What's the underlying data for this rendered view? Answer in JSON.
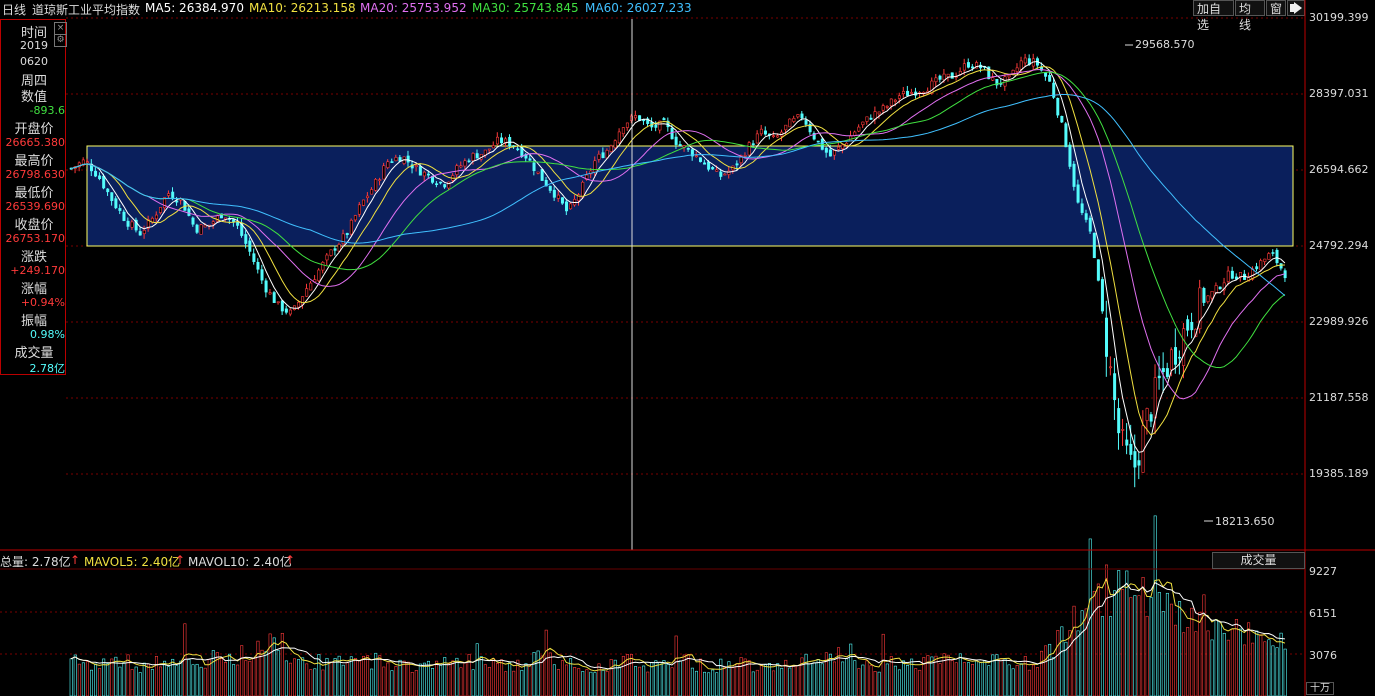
{
  "header": {
    "period": "日线",
    "name": "道琼斯工业平均指数",
    "ma": [
      {
        "label": "MA5: 26384.970",
        "color": "#ffffff"
      },
      {
        "label": "MA10: 26213.158",
        "color": "#f0e040"
      },
      {
        "label": "MA20: 25753.952",
        "color": "#e070f0"
      },
      {
        "label": "MA30: 25743.845",
        "color": "#40e040"
      },
      {
        "label": "MA60: 26027.233",
        "color": "#40c0ff"
      }
    ],
    "buttons": [
      "加自选",
      "均线",
      "窗"
    ],
    "arrow": "▲"
  },
  "info": {
    "time_label": "时间",
    "year": "2019",
    "date": "0620",
    "weekday": "周四",
    "value_label": "数值",
    "value": "-893.6",
    "open_label": "开盘价",
    "open": "26665.380",
    "high_label": "最高价",
    "high": "26798.630",
    "low_label": "最低价",
    "low": "26539.690",
    "close_label": "收盘价",
    "close": "26753.170",
    "change_label": "涨跌",
    "change": "+249.170",
    "pct_label": "涨幅",
    "pct": "+0.94%",
    "amp_label": "振幅",
    "amp": "0.98%",
    "vol_label": "成交量",
    "vol": "2.78亿"
  },
  "price_axis": [
    "30199.399",
    "28397.031",
    "26594.662",
    "24792.294",
    "22989.926",
    "21187.558",
    "19385.189"
  ],
  "annotations": {
    "max": "29568.570",
    "min": "18213.650"
  },
  "volume": {
    "total": "总量: 2.78亿",
    "mavol5": "MAVOL5: 2.40亿",
    "mavol10": "MAVOL10: 2.40亿",
    "title": "成交量",
    "axis": [
      "9227",
      "6151",
      "3076"
    ],
    "unit": "十万"
  },
  "colors": {
    "up": "#ff3a3a",
    "down": "#54fcfc",
    "grid": "#7a0000",
    "box": "#ffff66",
    "boxfill": "#0a1f5c"
  },
  "chart_data": {
    "type": "candlestick",
    "ylim": [
      17500,
      30400
    ],
    "series": [
      {
        "name": "MA5",
        "color": "#ffffff"
      },
      {
        "name": "MA10",
        "color": "#f0e040"
      },
      {
        "name": "MA20",
        "color": "#e070f0"
      },
      {
        "name": "MA30",
        "color": "#40e040"
      },
      {
        "name": "MA60",
        "color": "#40c0ff"
      }
    ],
    "close_path": [
      26700,
      26900,
      26500,
      25900,
      25400,
      25100,
      25500,
      26100,
      25900,
      25200,
      25300,
      25600,
      25300,
      24600,
      23800,
      23300,
      23100,
      23700,
      24200,
      24700,
      25100,
      25800,
      26300,
      26900,
      27000,
      26700,
      26500,
      26300,
      26700,
      27000,
      27100,
      27400,
      27300,
      27000,
      26500,
      26100,
      25600,
      26200,
      26900,
      27200,
      27800,
      28000,
      27700,
      27800,
      27300,
      27100,
      26800,
      26500,
      26700,
      27200,
      27600,
      27400,
      27800,
      28000,
      27400,
      27000,
      27300,
      27700,
      28000,
      28200,
      28500,
      28600,
      28700,
      28900,
      29000,
      29300,
      29200,
      28800,
      28900,
      29400,
      29300,
      28800,
      27500,
      25800,
      25000,
      22500,
      20000,
      19200,
      20500,
      21500,
      22200,
      22900,
      23400,
      23700,
      24100,
      24000,
      24300,
      24600,
      24100
    ],
    "max_point": 29568.57,
    "min_point": 18213.65,
    "volume_ylim": [
      0,
      9227
    ],
    "volume_path": [
      2400,
      2600,
      2300,
      2800,
      2500,
      2200,
      2400,
      2700,
      2500,
      2300,
      2600,
      3000,
      2800,
      3400,
      4200,
      3600,
      2900,
      2600,
      2500,
      2400,
      2400,
      2600,
      2700,
      2500,
      2300,
      2200,
      2400,
      2500,
      2700,
      2600,
      2400,
      2300,
      2200,
      2500,
      2800,
      2600,
      2400,
      2300,
      2200,
      2400,
      2500,
      2600,
      2300,
      2500,
      2800,
      2400,
      2300,
      2200,
      2600,
      2400,
      2300,
      2500,
      2700,
      2600,
      2400,
      2800,
      3000,
      2700,
      2400,
      2300,
      2600,
      2500,
      2400,
      2700,
      2900,
      2600,
      2400,
      2500,
      2300,
      2400,
      2700,
      3200,
      4800,
      6000,
      7200,
      7800,
      8000,
      7600,
      7000,
      6400,
      5800,
      5400,
      5100,
      4900,
      4800,
      4700,
      4500,
      4400,
      4400
    ]
  }
}
